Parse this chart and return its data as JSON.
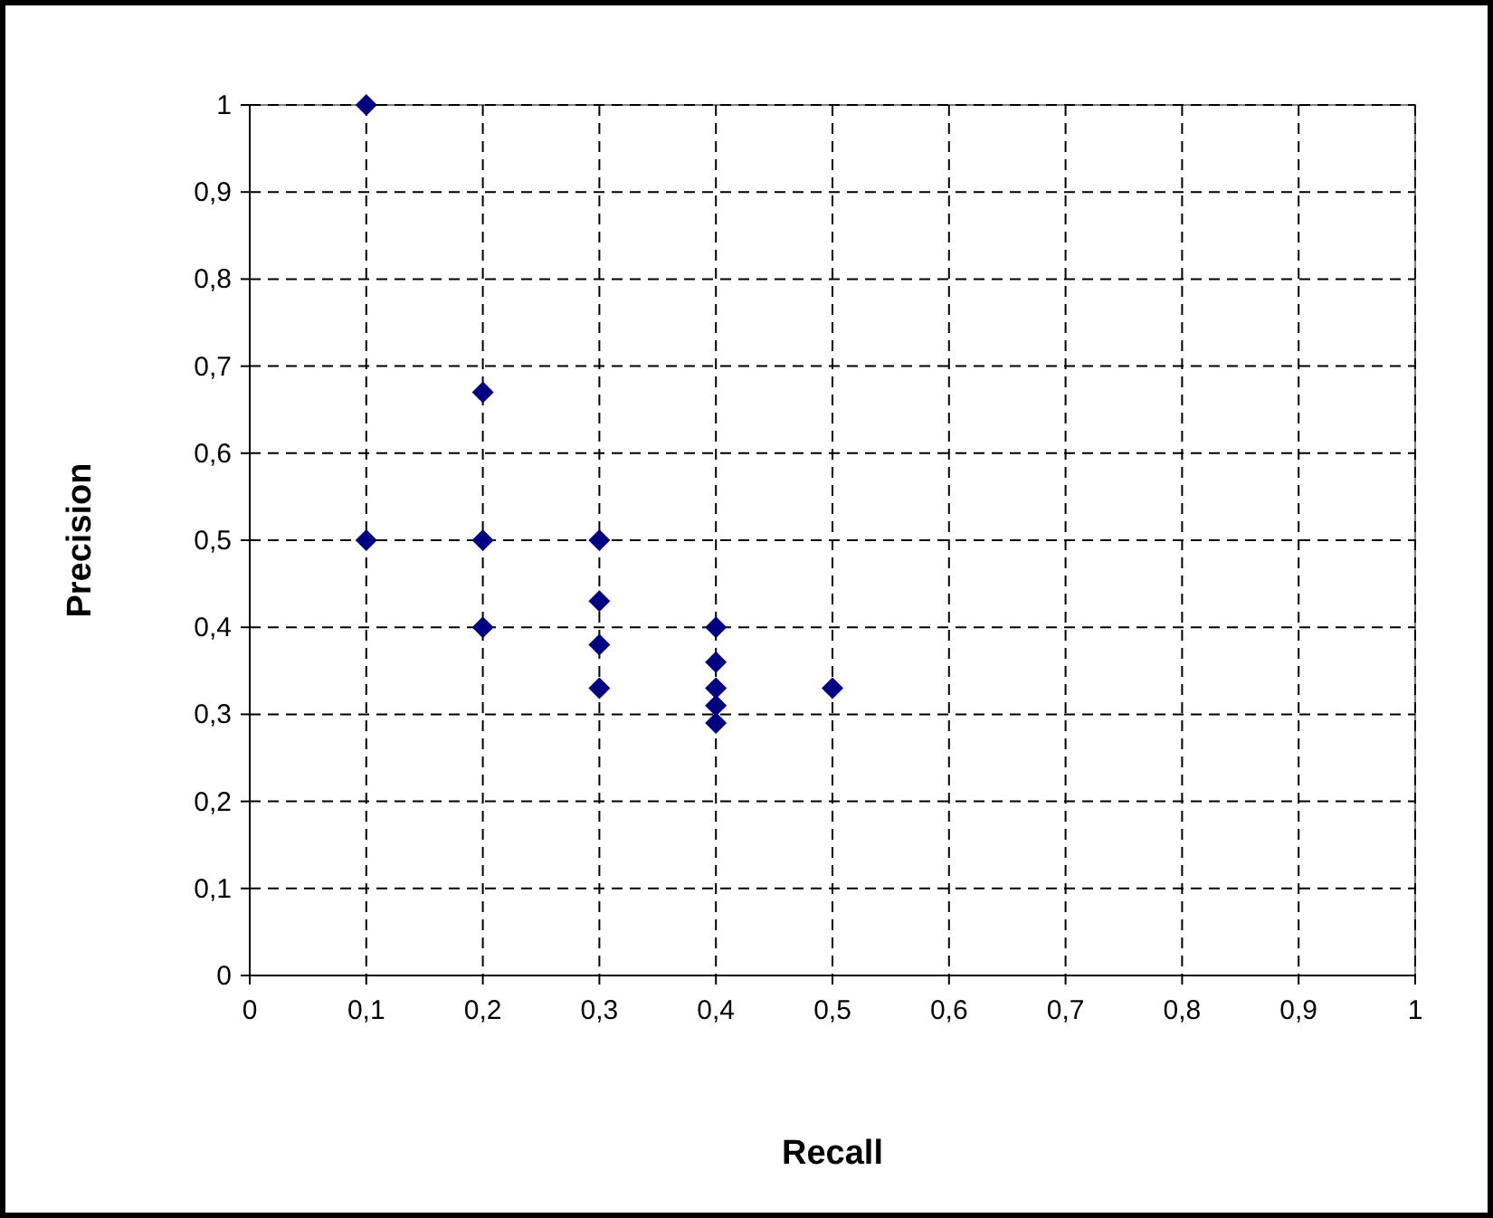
{
  "chart_data": {
    "type": "scatter",
    "xlabel": "Recall",
    "ylabel": "Precision",
    "x": [
      0.1,
      0.1,
      0.2,
      0.2,
      0.2,
      0.3,
      0.3,
      0.3,
      0.3,
      0.4,
      0.4,
      0.4,
      0.4,
      0.4,
      0.5
    ],
    "series": [
      {
        "color": "#000080",
        "values": [
          1,
          0.5,
          0.67,
          0.5,
          0.4,
          0.5,
          0.43,
          0.38,
          0.33,
          0.4,
          0.36,
          0.33,
          0.31,
          0.29,
          0.33
        ]
      }
    ],
    "xlim": [
      0,
      1
    ],
    "ylim": [
      0,
      1
    ],
    "xticks": [
      0,
      {
        "value": 0.1,
        "label": "0,1"
      },
      {
        "value": 0.2,
        "label": "0,2"
      },
      {
        "value": 0.3,
        "label": "0,3"
      },
      {
        "value": 0.4,
        "label": "0,4"
      },
      {
        "value": 0.5,
        "label": "0,5"
      },
      {
        "value": 0.6,
        "label": "0,6"
      },
      {
        "value": 0.7,
        "label": "0,7"
      },
      {
        "value": 0.8,
        "label": "0,8"
      },
      {
        "value": 0.9,
        "label": "0,9"
      },
      1
    ],
    "yticks": [
      0,
      {
        "value": 0.1,
        "label": "0,1"
      },
      {
        "value": 0.2,
        "label": "0,2"
      },
      {
        "value": 0.3,
        "label": "0,3"
      },
      {
        "value": 0.4,
        "label": "0,4"
      },
      {
        "value": 0.5,
        "label": "0,5"
      },
      {
        "value": 0.6,
        "label": "0,6"
      },
      {
        "value": 0.7,
        "label": "0,7"
      },
      {
        "value": 0.8,
        "label": "0,8"
      },
      {
        "value": 0.9,
        "label": "0,9"
      },
      1
    ],
    "grid": true,
    "marker": "diamond"
  }
}
